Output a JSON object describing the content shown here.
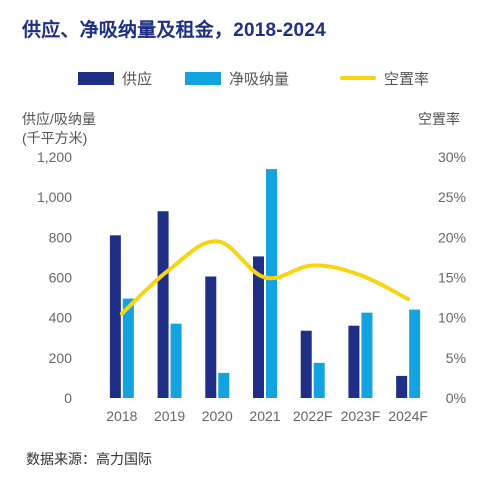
{
  "title": "供应、净吸纳量及租金，2018-2024",
  "source": "数据来源：高力国际",
  "colors": {
    "title": "#1f2f86",
    "supply": "#1f2f86",
    "absorption": "#13a3df",
    "vacancy": "#f9d410"
  },
  "chart_data": {
    "type": "bar",
    "categories": [
      "2018",
      "2019",
      "2020",
      "2021",
      "2022F",
      "2023F",
      "2024F"
    ],
    "series": [
      {
        "name": "供应",
        "kind": "bar",
        "axis": "left",
        "values": [
          810,
          930,
          605,
          705,
          335,
          360,
          110
        ]
      },
      {
        "name": "净吸纳量",
        "kind": "bar",
        "axis": "left",
        "values": [
          495,
          370,
          125,
          1140,
          175,
          425,
          440
        ]
      },
      {
        "name": "空置率",
        "kind": "line",
        "axis": "right",
        "values": [
          0.105,
          0.16,
          0.195,
          0.15,
          0.165,
          0.153,
          0.123
        ]
      }
    ],
    "y_left": {
      "label_line1": "供应/吸纳量",
      "label_line2": "(千平方米)",
      "ylim": [
        0,
        1200
      ],
      "ticks": [
        "0",
        "200",
        "400",
        "600",
        "800",
        "1,000",
        "1,200"
      ]
    },
    "y_right": {
      "label": "空置率",
      "ylim": [
        0,
        0.3
      ],
      "ticks": [
        "0%",
        "5%",
        "10%",
        "15%",
        "20%",
        "25%",
        "30%"
      ]
    },
    "legend": {
      "position": "top",
      "items": [
        "供应",
        "净吸纳量",
        "空置率"
      ]
    },
    "grid": false
  }
}
